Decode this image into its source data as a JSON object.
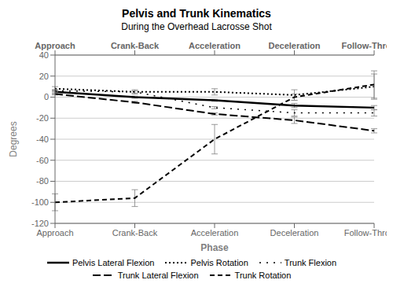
{
  "chart_data": {
    "type": "line",
    "title": "Pelvis and Trunk Kinematics",
    "subtitle": "During the Overhead Lacrosse Shot",
    "xlabel": "Phase",
    "ylabel": "Degrees",
    "categories": [
      "Approach",
      "Crank-Back",
      "Acceleration",
      "Deceleration",
      "Follow-Through"
    ],
    "series": [
      {
        "name": "Pelvis Lateral Flexion",
        "color": "#000000",
        "line_style": "solid",
        "values": [
          5,
          0,
          -3,
          -8,
          -10
        ],
        "errors": [
          2,
          1,
          1,
          2,
          2
        ]
      },
      {
        "name": "Pelvis Rotation",
        "color": "#000000",
        "line_style": "dense_dot",
        "values": [
          8,
          5,
          5,
          2,
          10
        ],
        "errors": [
          2,
          2,
          3,
          5,
          12
        ]
      },
      {
        "name": "Trunk Flexion",
        "color": "#000000",
        "line_style": "sparse_dot",
        "values": [
          6,
          5,
          -10,
          -15,
          -15
        ],
        "errors": [
          1,
          1,
          1,
          3,
          3
        ]
      },
      {
        "name": "Trunk Lateral Flexion",
        "color": "#000000",
        "line_style": "long_dash",
        "values": [
          3,
          -5,
          -16,
          -22,
          -32
        ],
        "errors": [
          1,
          1,
          1,
          3,
          2
        ]
      },
      {
        "name": "Trunk Rotation",
        "color": "#000000",
        "line_style": "med_dash",
        "values": [
          -100,
          -96,
          -40,
          0,
          12
        ],
        "errors": [
          8,
          8,
          14,
          3,
          13
        ]
      }
    ],
    "ylim": [
      -120,
      40
    ],
    "yticks": [
      -120,
      -100,
      -80,
      -60,
      -40,
      -20,
      0,
      20,
      40
    ],
    "grid": "y",
    "legend": "bottom"
  }
}
